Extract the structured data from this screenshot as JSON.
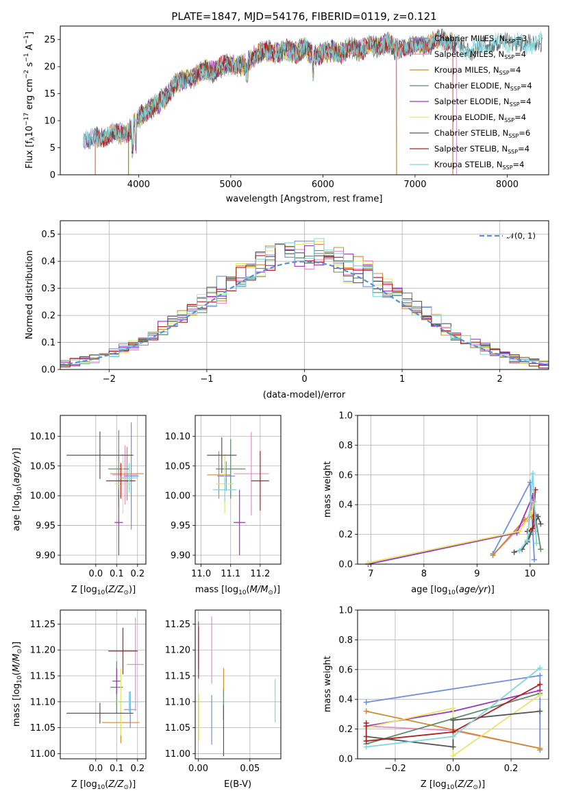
{
  "colors": {
    "chabrier_miles": "#6f8fdc",
    "salpeter_miles": "#e88cc8",
    "kroupa_miles": "#d08a2c",
    "chabrier_elodie": "#5e8c66",
    "salpeter_elodie": "#9a33b8",
    "kroupa_elodie": "#e4e466",
    "chabrier_stelib": "#555555",
    "salpeter_stelib": "#b01e1e",
    "kroupa_stelib": "#7fd6dc",
    "gauss": "#5a8fd8"
  },
  "chart_data": [
    {
      "id": "spectrum",
      "type": "line",
      "title": "PLATE=1847, MJD=54176, FIBERID=0119, z=0.121",
      "xlabel": "wavelength [Angstrom, rest frame]",
      "ylabel": "Flux [f_λ 10^-17 erg cm^-2 s^-1 A^-1]",
      "xlim": [
        3150,
        8450
      ],
      "ylim": [
        0,
        27.5
      ],
      "xticks": [
        4000,
        5000,
        6000,
        7000,
        8000
      ],
      "yticks": [
        0,
        5,
        10,
        15,
        20,
        25
      ],
      "grid": false,
      "legend": "upper-right",
      "continuum": {
        "x": [
          3400,
          3500,
          3600,
          3700,
          3800,
          3900,
          4000,
          4100,
          4200,
          4300,
          4400,
          4500,
          4600,
          4700,
          4800,
          4900,
          5000,
          5100,
          5200,
          5300,
          5400,
          5500,
          5600,
          5700,
          5800,
          5900,
          6000,
          6100,
          6200,
          6300,
          6400,
          6500,
          6600,
          6700,
          6800,
          6900,
          7000,
          7100,
          7200,
          7300,
          7400,
          7500,
          7600,
          7700,
          7800,
          7900,
          8000,
          8100,
          8200,
          8300,
          8380
        ],
        "y": [
          6.8,
          6.5,
          7.0,
          7.5,
          7.6,
          8.2,
          10.5,
          12.0,
          13.0,
          14.5,
          17.0,
          17.5,
          18.0,
          19.5,
          19.0,
          20.0,
          20.5,
          20.0,
          21.0,
          22.5,
          23.0,
          22.5,
          23.0,
          22.5,
          23.5,
          22.0,
          22.5,
          23.0,
          22.5,
          23.5,
          23.0,
          24.0,
          23.5,
          24.5,
          23.0,
          24.0,
          23.5,
          24.0,
          24.5,
          25.0,
          24.5,
          23.5,
          23.0,
          23.5,
          24.0,
          24.5,
          24.5,
          24.5,
          24.0,
          24.5,
          24.5
        ]
      },
      "series": [
        {
          "name": "Chabrier MILES, N_SSP=3",
          "label_main": "Chabrier MILES, N",
          "label_sub": "SSP",
          "label_tail": "=3",
          "range": [
            3400,
            7450
          ]
        },
        {
          "name": "Salpeter MILES, N_SSP=4",
          "label_main": "Salpeter MILES, N",
          "label_sub": "SSP",
          "label_tail": "=4",
          "range": [
            3400,
            7450
          ]
        },
        {
          "name": "Kroupa MILES, N_SSP=4",
          "label_main": "Kroupa MILES, N",
          "label_sub": "SSP",
          "label_tail": "=4",
          "range": [
            3530,
            7410
          ]
        },
        {
          "name": "Chabrier ELODIE, N_SSP=4",
          "label_main": "Chabrier ELODIE, N",
          "label_sub": "SSP",
          "label_tail": "=4",
          "range": [
            3890,
            6800
          ]
        },
        {
          "name": "Salpeter ELODIE, N_SSP=4",
          "label_main": "Salpeter ELODIE, N",
          "label_sub": "SSP",
          "label_tail": "=4",
          "range": [
            3890,
            6800
          ]
        },
        {
          "name": "Kroupa ELODIE, N_SSP=4",
          "label_main": "Kroupa ELODIE, N",
          "label_sub": "SSP",
          "label_tail": "=4",
          "range": [
            3900,
            6795
          ]
        },
        {
          "name": "Chabrier STELIB, N_SSP=6",
          "label_main": "Chabrier STELIB, N",
          "label_sub": "SSP",
          "label_tail": "=6",
          "range": [
            3400,
            8380
          ]
        },
        {
          "name": "Salpeter STELIB, N_SSP=4",
          "label_main": "Salpeter STELIB, N",
          "label_sub": "SSP",
          "label_tail": "=4",
          "range": [
            3530,
            7410
          ]
        },
        {
          "name": "Kroupa STELIB, N_SSP=4",
          "label_main": "Kroupa STELIB, N",
          "label_sub": "SSP",
          "label_tail": "=4",
          "range": [
            3400,
            8380
          ]
        }
      ]
    },
    {
      "id": "residuals",
      "type": "histogram",
      "xlabel": "(data-model)/error",
      "ylabel": "Normed distribution",
      "xlim": [
        -2.5,
        2.5
      ],
      "ylim": [
        0,
        0.55
      ],
      "xticks": [
        -2,
        -1,
        0,
        1,
        2
      ],
      "yticks": [
        0.0,
        0.1,
        0.2,
        0.3,
        0.4,
        0.5
      ],
      "grid": true,
      "legend": "upper-right",
      "bin_width": 0.1,
      "gauss_label": "𝒩(0, 1)"
    },
    {
      "id": "age-vs-Z",
      "type": "scatter",
      "xlabel": "Z [log10(Z/Z⊙)]",
      "ylabel": "age [log10(age/yr)]",
      "xlim": [
        -0.17,
        0.24
      ],
      "ylim": [
        9.885,
        10.135
      ],
      "xticks": [
        0.0,
        0.1,
        0.2
      ],
      "yticks": [
        9.9,
        9.95,
        10.0,
        10.05,
        10.1
      ],
      "grid": true,
      "points": [
        {
          "x": 0.17,
          "y": 10.033,
          "xerr": 0.035,
          "yerr": 0.09
        },
        {
          "x": 0.14,
          "y": 10.035,
          "xerr": 0.06,
          "yerr": 0.05
        },
        {
          "x": 0.15,
          "y": 10.037,
          "xerr": 0.08,
          "yerr": 0.045
        },
        {
          "x": 0.11,
          "y": 10.045,
          "xerr": 0.05,
          "yerr": 0.065
        },
        {
          "x": 0.11,
          "y": 9.955,
          "xerr": 0.02,
          "yerr": 0.055
        },
        {
          "x": 0.13,
          "y": 10.02,
          "xerr": 0.04,
          "yerr": 0.05
        },
        {
          "x": 0.02,
          "y": 10.068,
          "xerr": 0.16,
          "yerr": 0.04
        },
        {
          "x": 0.12,
          "y": 10.025,
          "xerr": 0.07,
          "yerr": 0.03
        },
        {
          "x": 0.16,
          "y": 10.03,
          "xerr": 0.04,
          "yerr": 0.025
        }
      ]
    },
    {
      "id": "age-vs-mass",
      "type": "scatter",
      "xlabel": "mass [log10(M/M⊙)]",
      "ylabel": "",
      "xlim": [
        10.98,
        11.27
      ],
      "ylim": [
        9.885,
        10.135
      ],
      "xticks": [
        11.0,
        11.1,
        11.2
      ],
      "yticks": [
        9.9,
        9.95,
        10.0,
        10.05,
        10.1
      ],
      "grid": true,
      "points": [
        {
          "x": 11.085,
          "y": 10.033,
          "xerr": 0.03,
          "yerr": 0.025
        },
        {
          "x": 11.17,
          "y": 10.037,
          "xerr": 0.06,
          "yerr": 0.07
        },
        {
          "x": 11.06,
          "y": 10.035,
          "xerr": 0.04,
          "yerr": 0.04
        },
        {
          "x": 11.1,
          "y": 10.045,
          "xerr": 0.05,
          "yerr": 0.05
        },
        {
          "x": 11.13,
          "y": 9.955,
          "xerr": 0.02,
          "yerr": 0.055
        },
        {
          "x": 11.08,
          "y": 10.02,
          "xerr": 0.03,
          "yerr": 0.05
        },
        {
          "x": 11.07,
          "y": 10.068,
          "xerr": 0.05,
          "yerr": 0.03
        },
        {
          "x": 11.2,
          "y": 10.025,
          "xerr": 0.03,
          "yerr": 0.05
        },
        {
          "x": 11.08,
          "y": 10.01,
          "xerr": 0.04,
          "yerr": 0.02
        }
      ]
    },
    {
      "id": "massweight-vs-age",
      "type": "line",
      "xlabel": "age [log10(age/yr)]",
      "ylabel": "mass weight",
      "xlim": [
        6.75,
        10.35
      ],
      "ylim": [
        0,
        1
      ],
      "xticks": [
        7,
        8,
        9,
        10
      ],
      "yticks": [
        0.0,
        0.2,
        0.4,
        0.6,
        0.8,
        1.0
      ],
      "grid": true,
      "series": [
        {
          "x": [
            9.3,
            10.0,
            10.08
          ],
          "y": [
            0.07,
            0.55,
            0.03
          ]
        },
        {
          "x": [
            9.3,
            9.95,
            10.05,
            10.1
          ],
          "y": [
            0.06,
            0.3,
            0.42,
            0.22
          ]
        },
        {
          "x": [
            9.3,
            9.9,
            10.03,
            10.1
          ],
          "y": [
            0.06,
            0.3,
            0.32,
            0.33
          ]
        },
        {
          "x": [
            9.85,
            10.0,
            10.1,
            10.2
          ],
          "y": [
            0.1,
            0.2,
            0.32,
            0.1
          ]
        },
        {
          "x": [
            6.95,
            9.75,
            10.05,
            10.1
          ],
          "y": [
            0.0,
            0.21,
            0.46,
            0.33
          ]
        },
        {
          "x": [
            6.95,
            9.8,
            10.02,
            10.08
          ],
          "y": [
            0.01,
            0.22,
            0.34,
            0.42
          ]
        },
        {
          "x": [
            9.7,
            9.85,
            9.95,
            10.15,
            10.2
          ],
          "y": [
            0.08,
            0.1,
            0.15,
            0.32,
            0.27
          ]
        },
        {
          "x": [
            9.95,
            10.05,
            10.1
          ],
          "y": [
            0.22,
            0.24,
            0.5
          ]
        },
        {
          "x": [
            9.8,
            9.95,
            10.05,
            10.12
          ],
          "y": [
            0.09,
            0.16,
            0.61,
            0.14
          ]
        }
      ]
    },
    {
      "id": "mass-vs-Z",
      "type": "scatter",
      "xlabel": "Z [log10(Z/Z⊙)]",
      "ylabel": "mass [log10(M/M⊙)]",
      "xlim": [
        -0.17,
        0.24
      ],
      "ylim": [
        10.99,
        11.277
      ],
      "xticks": [
        0.0,
        0.1,
        0.2
      ],
      "yticks": [
        11.0,
        11.05,
        11.1,
        11.15,
        11.2,
        11.25
      ],
      "grid": true,
      "points": [
        {
          "x": 0.165,
          "y": 11.085,
          "xerr": 0.03,
          "yerr": 0.035
        },
        {
          "x": 0.19,
          "y": 11.172,
          "xerr": 0.04,
          "yerr": 0.09
        },
        {
          "x": 0.12,
          "y": 11.06,
          "xerr": 0.09,
          "yerr": 0.04
        },
        {
          "x": 0.1,
          "y": 11.128,
          "xerr": 0.03,
          "yerr": 0.05
        },
        {
          "x": 0.1,
          "y": 11.14,
          "xerr": 0.02,
          "yerr": 0.025
        },
        {
          "x": 0.12,
          "y": 11.1,
          "xerr": 0.02,
          "yerr": 0.065
        },
        {
          "x": 0.02,
          "y": 11.078,
          "xerr": 0.16,
          "yerr": 0.02
        },
        {
          "x": 0.13,
          "y": 11.198,
          "xerr": 0.07,
          "yerr": 0.045
        },
        {
          "x": 0.16,
          "y": 11.1,
          "xerr": 0.05,
          "yerr": 0.02
        }
      ]
    },
    {
      "id": "mass-vs-EBV",
      "type": "scatter",
      "xlabel": "E(B-V)",
      "ylabel": "",
      "xlim": [
        -0.003,
        0.08
      ],
      "ylim": [
        10.99,
        11.277
      ],
      "xticks": [
        0.0,
        0.05
      ],
      "yticks": [
        11.0,
        11.05,
        11.1,
        11.15,
        11.2,
        11.25
      ],
      "grid": true,
      "points": [
        {
          "x": 0.013,
          "y": 11.065,
          "yerr": 0.048
        },
        {
          "x": 0.013,
          "y": 11.2,
          "yerr": 0.065
        },
        {
          "x": 0.0245,
          "y": 11.115,
          "yerr": 0.05
        },
        {
          "x": 0.0245,
          "y": 11.095,
          "yerr": 0.03
        },
        {
          "x": 0.0002,
          "y": 11.21,
          "yerr": 0.045
        },
        {
          "x": 0.0005,
          "y": 11.07,
          "yerr": 0.045
        },
        {
          "x": 0.0245,
          "y": 11.045,
          "yerr": 0.05
        },
        {
          "x": 0.0002,
          "y": 11.195,
          "yerr": 0.05
        },
        {
          "x": 0.0745,
          "y": 11.102,
          "yerr": 0.042
        }
      ]
    },
    {
      "id": "massweight-vs-Z",
      "type": "line",
      "xlabel": "Z [log10(Z/Z⊙)]",
      "ylabel": "mass weight",
      "xlim": [
        -0.33,
        0.33
      ],
      "ylim": [
        0,
        1
      ],
      "xticks": [
        -0.2,
        0.0,
        0.2
      ],
      "yticks": [
        0.0,
        0.2,
        0.4,
        0.6,
        0.8,
        1.0
      ],
      "grid": true,
      "series": [
        {
          "x": [
            -0.3,
            0.3,
            0.3
          ],
          "y": [
            0.38,
            0.56,
            0.06
          ]
        },
        {
          "x": [
            -0.3,
            0.0,
            0.3
          ],
          "y": [
            0.22,
            0.19,
            0.07
          ]
        },
        {
          "x": [
            -0.3,
            0.3
          ],
          "y": [
            0.32,
            0.07
          ]
        },
        {
          "x": [
            -0.3,
            0.0,
            0.3
          ],
          "y": [
            0.1,
            0.27,
            0.44
          ]
        },
        {
          "x": [
            -0.3,
            0.0,
            0.3
          ],
          "y": [
            0.22,
            0.32,
            0.46
          ]
        },
        {
          "x": [
            -0.3,
            0.0,
            0.0,
            0.3
          ],
          "y": [
            0.21,
            0.34,
            0.02,
            0.43
          ]
        },
        {
          "x": [
            -0.3,
            0.0,
            0.0,
            0.3
          ],
          "y": [
            0.15,
            0.08,
            0.26,
            0.32
          ]
        },
        {
          "x": [
            -0.3,
            -0.3,
            0.0,
            0.3
          ],
          "y": [
            0.24,
            0.12,
            0.18,
            0.5
          ]
        },
        {
          "x": [
            -0.3,
            0.0,
            0.3
          ],
          "y": [
            0.08,
            0.15,
            0.61
          ]
        }
      ]
    }
  ]
}
